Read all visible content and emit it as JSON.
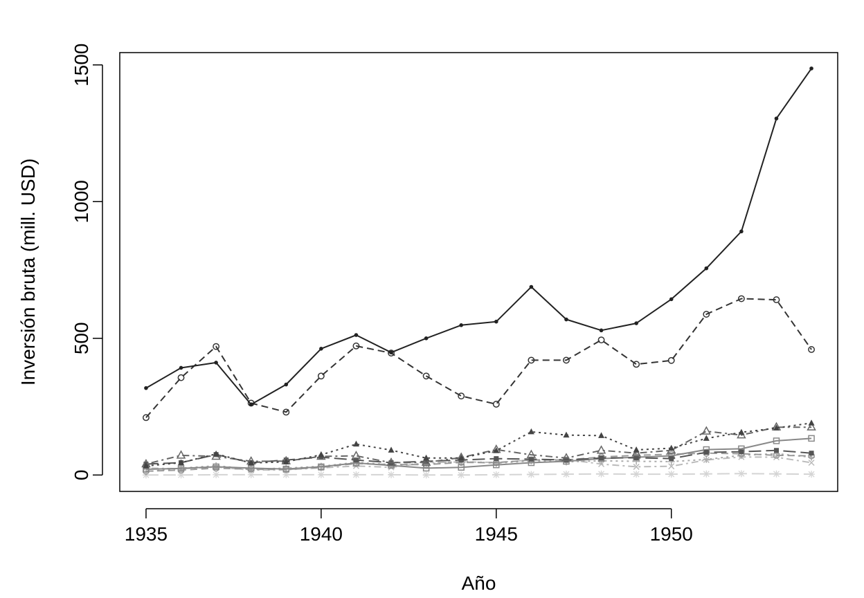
{
  "chart_data": {
    "type": "line",
    "title": "",
    "xlabel": "Año",
    "ylabel": "Inversión bruta (mill. USD)",
    "xlim": [
      1934.25,
      1954.75
    ],
    "ylim": [
      -60,
      1545
    ],
    "x_ticks": [
      1935,
      1940,
      1945,
      1950
    ],
    "x_tick_labels": [
      "1935",
      "1940",
      "1945",
      "1950"
    ],
    "y_ticks": [
      0,
      500,
      1000,
      1500
    ],
    "y_tick_labels": [
      "0",
      "500",
      "1000",
      "1500"
    ],
    "grid": false,
    "legend": "none",
    "x": [
      1935,
      1936,
      1937,
      1938,
      1939,
      1940,
      1941,
      1942,
      1943,
      1944,
      1945,
      1946,
      1947,
      1948,
      1949,
      1950,
      1951,
      1952,
      1953,
      1954
    ],
    "series": [
      {
        "color": "#222222",
        "dash": "solid",
        "marker": "dot",
        "values": [
          318,
          392,
          411,
          258,
          331,
          462,
          512,
          448,
          500,
          548,
          561,
          688,
          569,
          529,
          555,
          643,
          756,
          891,
          1304,
          1487
        ]
      },
      {
        "color": "#333333",
        "dash": "dashed",
        "marker": "circle",
        "values": [
          210,
          356,
          470,
          263,
          230,
          362,
          472,
          446,
          362,
          289,
          259,
          420,
          420,
          494,
          405,
          419,
          588,
          645,
          641,
          459
        ]
      },
      {
        "color": "#444444",
        "dash": "dotted",
        "marker": "triangle-filled",
        "values": [
          33,
          45,
          77,
          44,
          48,
          74,
          113,
          91,
          62,
          62,
          89,
          158,
          146,
          144,
          92,
          98,
          134,
          156,
          172,
          190
        ]
      },
      {
        "color": "#666666",
        "dash": "dotdash",
        "marker": "triangle-open",
        "values": [
          40,
          72,
          68,
          50,
          51,
          68,
          70,
          45,
          46,
          64,
          93,
          74,
          62,
          90,
          80,
          90,
          160,
          146,
          175,
          175
        ]
      },
      {
        "color": "#555555",
        "dash": "longdash",
        "marker": "square-filled",
        "values": [
          40,
          45,
          75,
          45,
          55,
          65,
          55,
          45,
          50,
          55,
          60,
          58,
          55,
          62,
          63,
          60,
          83,
          85,
          90,
          80
        ]
      },
      {
        "color": "#888888",
        "dash": "solid",
        "marker": "square-open",
        "values": [
          21,
          24,
          30,
          25,
          22,
          30,
          44,
          35,
          25,
          28,
          37,
          45,
          50,
          60,
          65,
          70,
          93,
          96,
          125,
          134
        ]
      },
      {
        "color": "#999999",
        "dash": "dashed",
        "marker": "circle-open",
        "values": [
          14,
          18,
          25,
          21,
          20,
          28,
          42,
          38,
          38,
          46,
          45,
          55,
          55,
          66,
          72,
          76,
          80,
          78,
          72,
          70
        ]
      },
      {
        "color": "#aaaaaa",
        "dash": "dotted",
        "marker": "cross",
        "values": [
          12,
          25,
          34,
          22,
          25,
          32,
          46,
          38,
          40,
          50,
          43,
          52,
          48,
          52,
          50,
          49,
          57,
          72,
          78,
          65
        ]
      },
      {
        "color": "#bbbbbb",
        "dash": "dotdash",
        "marker": "x",
        "values": [
          25,
          23,
          29,
          18,
          19,
          26,
          33,
          28,
          45,
          48,
          46,
          55,
          57,
          40,
          30,
          32,
          55,
          66,
          65,
          45
        ]
      },
      {
        "color": "#d4d4d4",
        "dash": "longdash",
        "marker": "star",
        "values": [
          0,
          0,
          1,
          1,
          1,
          1,
          1,
          1,
          0,
          0,
          1,
          2,
          3,
          4,
          3,
          3,
          4,
          5,
          4,
          3
        ]
      }
    ]
  }
}
